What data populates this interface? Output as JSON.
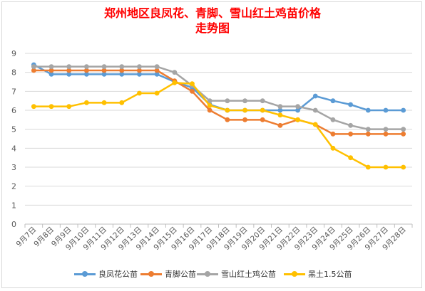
{
  "chart_data": {
    "type": "line",
    "title": [
      "郑州地区良凤花、青脚、雪山红土鸡苗价格",
      "走势图"
    ],
    "categories": [
      "9月7日",
      "9月8日",
      "9月9日",
      "9月10日",
      "9月11日",
      "9月12日",
      "9月13日",
      "9月14日",
      "9月15日",
      "9月16日",
      "9月17日",
      "9月18日",
      "9月19日",
      "9月20日",
      "9月21日",
      "9月22日",
      "9月23日",
      "9月24日",
      "9月25日",
      "9月26日",
      "9月27日",
      "9月28日"
    ],
    "ylim": [
      0,
      9
    ],
    "yticks": [
      0,
      1,
      2,
      3,
      4,
      5,
      6,
      7,
      8,
      9
    ],
    "grid": true,
    "legend_position": "bottom",
    "series": [
      {
        "name": "良凤花公苗",
        "color": "#5b9bd5",
        "values": [
          8.4,
          7.9,
          7.9,
          7.9,
          7.9,
          7.9,
          7.9,
          7.9,
          7.5,
          7.2,
          6.3,
          6.0,
          6.0,
          6.0,
          6.0,
          6.0,
          6.75,
          6.5,
          6.3,
          6.0,
          6.0,
          6.0
        ]
      },
      {
        "name": "青脚公苗",
        "color": "#ed7d31",
        "values": [
          8.1,
          8.1,
          8.1,
          8.1,
          8.1,
          8.1,
          8.1,
          8.1,
          7.55,
          7.0,
          6.0,
          5.5,
          5.5,
          5.5,
          5.2,
          5.5,
          5.25,
          4.75,
          4.75,
          4.75,
          4.75,
          4.75
        ]
      },
      {
        "name": "雪山红土鸡公苗",
        "color": "#a5a5a5",
        "values": [
          8.3,
          8.3,
          8.3,
          8.3,
          8.3,
          8.3,
          8.3,
          8.3,
          8.0,
          7.3,
          6.5,
          6.5,
          6.5,
          6.5,
          6.2,
          6.2,
          6.0,
          5.5,
          5.2,
          5.0,
          5.0,
          5.0
        ]
      },
      {
        "name": "黑土1.5公苗",
        "color": "#ffc000",
        "values": [
          6.2,
          6.2,
          6.2,
          6.4,
          6.4,
          6.4,
          6.9,
          6.9,
          7.45,
          7.4,
          6.25,
          6.0,
          6.0,
          6.0,
          5.75,
          5.5,
          5.25,
          4.0,
          3.5,
          3.0,
          3.0,
          3.0
        ]
      }
    ]
  }
}
